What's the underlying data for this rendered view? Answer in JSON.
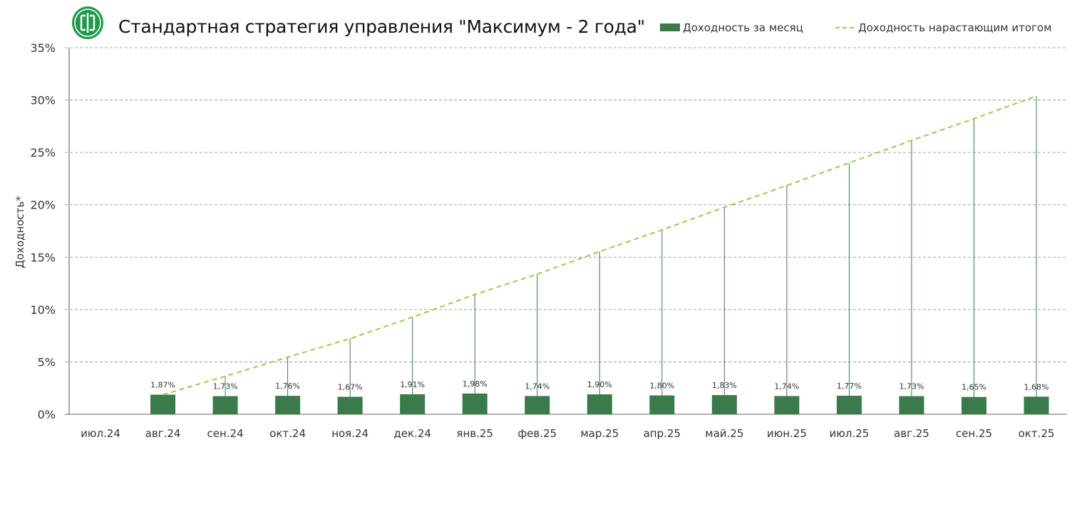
{
  "header": {
    "title": "Стандартная стратегия управления \"Максимум - 2 года\"",
    "logo_icon": "green-circular-logo-icon"
  },
  "legend": {
    "bars_label": "Доходность за месяц",
    "line_label": "Доходность нарастающим итогом"
  },
  "colors": {
    "bars": "#3a7a4b",
    "line": "#9ecb4f",
    "grid": "#888888",
    "logo": "#1f9a4c"
  },
  "chart_data": {
    "type": "bar",
    "title": "Стандартная стратегия управления \"Максимум - 2 года\"",
    "xlabel": "",
    "ylabel": "Доходность*",
    "ylim": [
      0,
      35
    ],
    "y_ticks": [
      "0%",
      "5%",
      "10%",
      "15%",
      "20%",
      "25%",
      "30%",
      "35%"
    ],
    "grid": true,
    "legend_position": "top-right",
    "categories": [
      "июл.24",
      "авг.24",
      "сен.24",
      "окт.24",
      "ноя.24",
      "дек.24",
      "янв.25",
      "фев.25",
      "мар.25",
      "апр.25",
      "май.25",
      "июн.25",
      "июл.25",
      "авг.25",
      "сен.25",
      "окт.25"
    ],
    "series": [
      {
        "name": "Доходность за месяц",
        "type": "bar",
        "values": [
          null,
          1.87,
          1.73,
          1.76,
          1.67,
          1.91,
          1.98,
          1.74,
          1.9,
          1.8,
          1.83,
          1.74,
          1.77,
          1.73,
          1.65,
          1.68
        ],
        "labels": [
          "",
          "1,87%",
          "1,73%",
          "1,76%",
          "1,67%",
          "1,91%",
          "1,98%",
          "1,74%",
          "1,90%",
          "1,80%",
          "1,83%",
          "1,74%",
          "1,77%",
          "1,73%",
          "1,65%",
          "1,68%"
        ]
      },
      {
        "name": "Доходность нарастающим итогом",
        "type": "line",
        "values": [
          null,
          1.87,
          3.63,
          5.45,
          7.22,
          9.27,
          11.44,
          13.38,
          15.53,
          17.61,
          19.76,
          21.84,
          24.0,
          26.14,
          28.22,
          30.38
        ]
      }
    ]
  }
}
